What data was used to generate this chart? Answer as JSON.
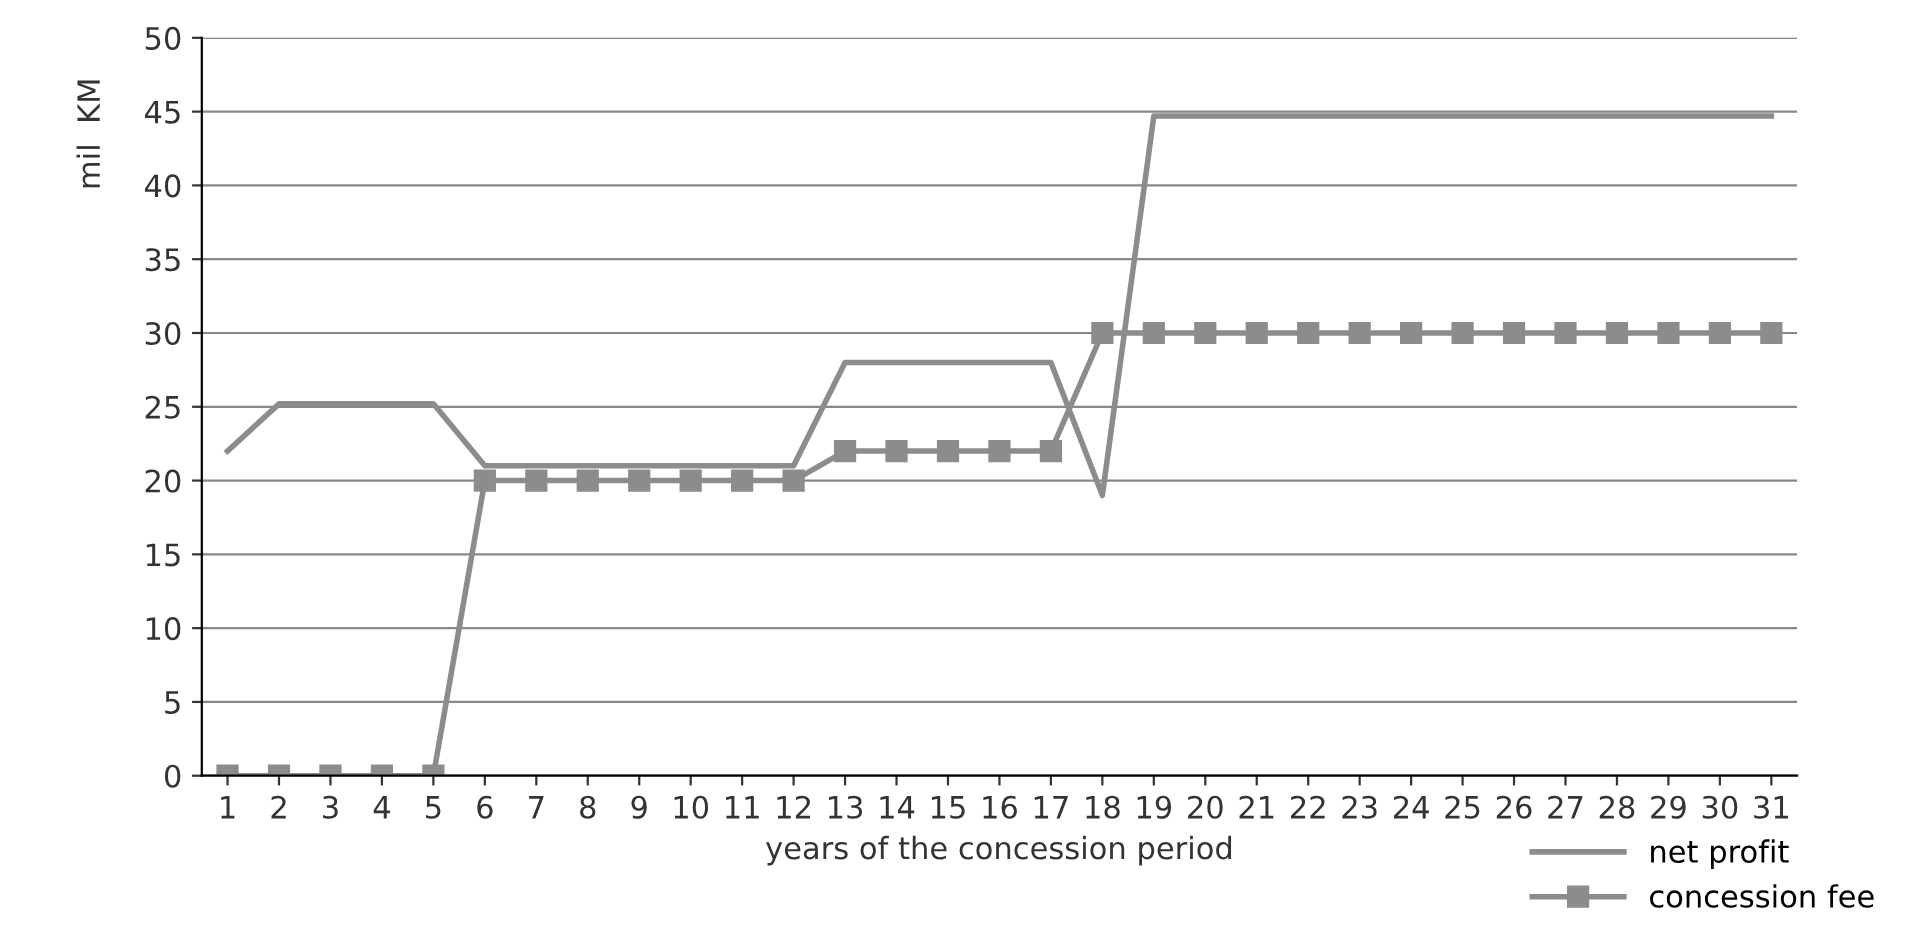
{
  "chart_data": {
    "type": "line",
    "xlabel": "years of the concession period",
    "ylabel": "mil  KM",
    "categories": [
      "1",
      "2",
      "3",
      "4",
      "5",
      "6",
      "7",
      "8",
      "9",
      "10",
      "11",
      "12",
      "13",
      "14",
      "15",
      "16",
      "17",
      "18",
      "19",
      "20",
      "21",
      "22",
      "23",
      "24",
      "25",
      "26",
      "27",
      "28",
      "29",
      "30",
      "31"
    ],
    "series": [
      {
        "name": "net profit",
        "color": "#8c8c8c",
        "marker": "none",
        "values": [
          22,
          25.2,
          25.2,
          25.2,
          25.2,
          21,
          21,
          21,
          21,
          21,
          21,
          21,
          28,
          28,
          28,
          28,
          28,
          19,
          44.7,
          44.7,
          44.7,
          44.7,
          44.7,
          44.7,
          44.7,
          44.7,
          44.7,
          44.7,
          44.7,
          44.7,
          44.7
        ]
      },
      {
        "name": "concession fee",
        "color": "#8c8c8c",
        "marker": "square",
        "values": [
          0,
          0,
          0,
          0,
          0,
          20,
          20,
          20,
          20,
          20,
          20,
          20,
          22,
          22,
          22,
          22,
          22,
          30,
          30,
          30,
          30,
          30,
          30,
          30,
          30,
          30,
          30,
          30,
          30,
          30,
          30
        ]
      }
    ],
    "ylim": [
      0,
      50
    ],
    "yticks": [
      0,
      5,
      10,
      15,
      20,
      25,
      30,
      35,
      40,
      45,
      50
    ],
    "grid": "y",
    "legend": "bottom right"
  }
}
